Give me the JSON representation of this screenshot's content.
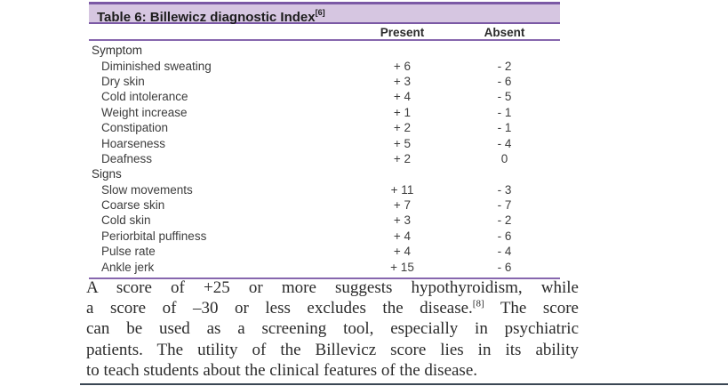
{
  "table": {
    "title": "Table 6: Billewicz diagnostic Index",
    "title_ref": "[6]",
    "columns": [
      "Present",
      "Absent"
    ],
    "sections": [
      {
        "name": "Symptom",
        "rows": [
          {
            "label": "Diminished sweating",
            "present": "+ 6",
            "absent": "- 2"
          },
          {
            "label": "Dry skin",
            "present": "+ 3",
            "absent": "- 6"
          },
          {
            "label": "Cold intolerance",
            "present": "+ 4",
            "absent": "- 5"
          },
          {
            "label": "Weight increase",
            "present": "+ 1",
            "absent": "- 1"
          },
          {
            "label": "Constipation",
            "present": "+ 2",
            "absent": "- 1"
          },
          {
            "label": "Hoarseness",
            "present": "+ 5",
            "absent": "- 4"
          },
          {
            "label": "Deafness",
            "present": "+ 2",
            "absent": "0"
          }
        ]
      },
      {
        "name": "Signs",
        "rows": [
          {
            "label": "Slow movements",
            "present": "+ 11",
            "absent": "- 3"
          },
          {
            "label": "Coarse skin",
            "present": "+ 7",
            "absent": "- 7"
          },
          {
            "label": "Cold skin",
            "present": "+ 3",
            "absent": "- 2"
          },
          {
            "label": "Periorbital puffiness",
            "present": "+ 4",
            "absent": "- 6"
          },
          {
            "label": "Pulse rate",
            "present": "+ 4",
            "absent": "- 4"
          },
          {
            "label": "Ankle jerk",
            "present": "+ 15",
            "absent": "- 6"
          }
        ]
      }
    ]
  },
  "paragraph": {
    "line1": "A score of +25 or more suggests hypothyroidism, while",
    "line2_pre": "a score of –30 or less excludes the disease.",
    "line2_ref": "[8]",
    "line2_post": " The score",
    "line3": "can be used as a screening tool, especially in psychiatric",
    "line4": "patients. The utility of the Billevicz score lies in its ability",
    "line5": "to teach students about the clinical features of the disease."
  },
  "colors": {
    "title_bar_bg": "#d6c6e1",
    "title_bar_border": "#7b59a5",
    "rule_purple": "#8767ae",
    "bottom_rule": "#3a4654"
  }
}
